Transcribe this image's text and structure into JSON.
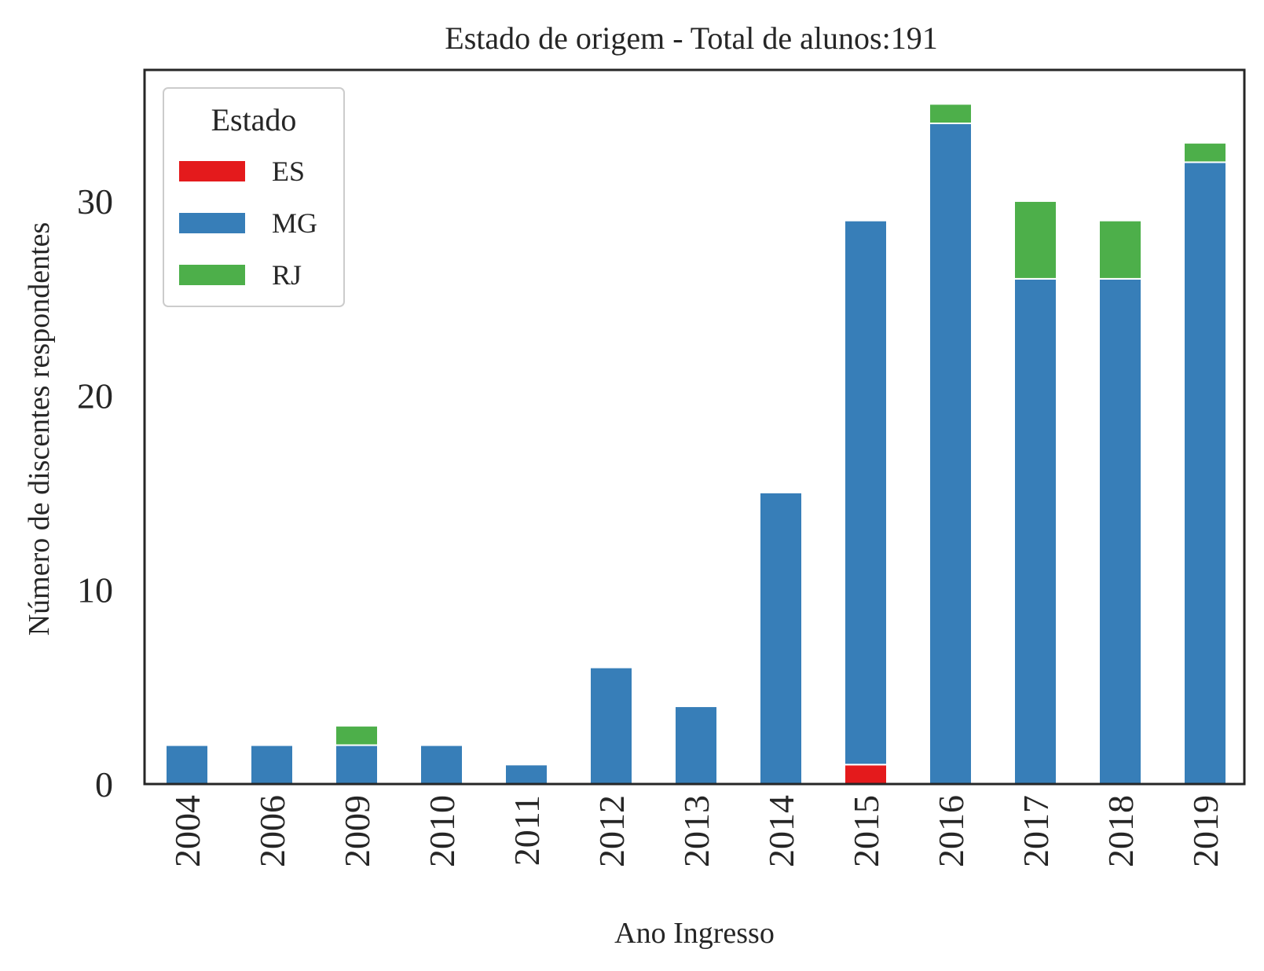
{
  "chart_data": {
    "type": "bar",
    "stacked": true,
    "title": "Estado de origem - Total de alunos:191",
    "xlabel": "Ano Ingresso",
    "ylabel": "Número de discentes respondentes",
    "categories": [
      "2004",
      "2006",
      "2009",
      "2010",
      "2011",
      "2012",
      "2013",
      "2014",
      "2015",
      "2016",
      "2017",
      "2018",
      "2019"
    ],
    "series": [
      {
        "name": "ES",
        "color": "#e41a1c",
        "values": [
          0,
          0,
          0,
          0,
          0,
          0,
          0,
          0,
          1,
          0,
          0,
          0,
          0
        ]
      },
      {
        "name": "MG",
        "color": "#377eb8",
        "values": [
          2,
          2,
          2,
          2,
          1,
          6,
          4,
          15,
          28,
          34,
          26,
          26,
          32
        ]
      },
      {
        "name": "RJ",
        "color": "#4daf4a",
        "values": [
          0,
          0,
          1,
          0,
          0,
          0,
          0,
          0,
          0,
          1,
          4,
          3,
          1
        ]
      }
    ],
    "ylim": [
      0,
      36.75
    ],
    "yticks": [
      "0",
      "10",
      "20",
      "30"
    ],
    "legend": {
      "title": "Estado",
      "placement": "top-left"
    },
    "grid": false
  }
}
